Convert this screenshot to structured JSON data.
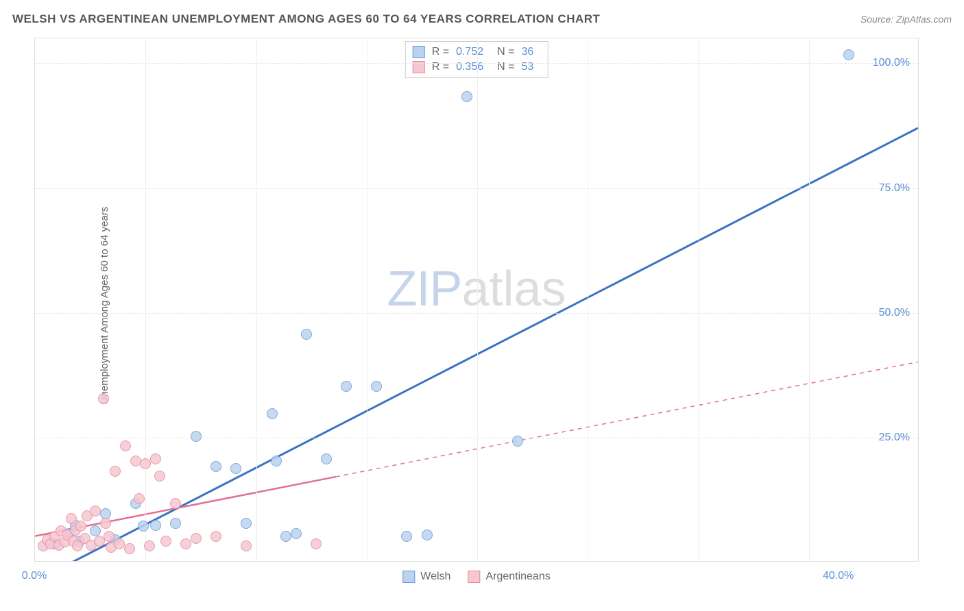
{
  "title": "WELSH VS ARGENTINEAN UNEMPLOYMENT AMONG AGES 60 TO 64 YEARS CORRELATION CHART",
  "source": "Source: ZipAtlas.com",
  "y_axis_label": "Unemployment Among Ages 60 to 64 years",
  "watermark_zip": "ZIP",
  "watermark_atlas": "atlas",
  "chart": {
    "type": "scatter",
    "xlim": [
      0,
      44
    ],
    "ylim": [
      0,
      105
    ],
    "x_ticks": [
      {
        "v": 0,
        "label": "0.0%"
      },
      {
        "v": 40,
        "label": "40.0%"
      }
    ],
    "y_ticks": [
      {
        "v": 25,
        "label": "25.0%"
      },
      {
        "v": 50,
        "label": "50.0%"
      },
      {
        "v": 75,
        "label": "75.0%"
      },
      {
        "v": 100,
        "label": "100.0%"
      }
    ],
    "background_color": "#ffffff",
    "grid_color": "#e5e5e5",
    "marker_radius": 8,
    "marker_stroke_width": 1.5,
    "series": [
      {
        "name": "Welsh",
        "fill": "#bcd3ef",
        "stroke": "#6a9bd8",
        "line_color": "#3b72c4",
        "line_width": 3,
        "r_label": "R = ",
        "r_value": "0.752",
        "n_label": "N = ",
        "n_value": "36",
        "trend": {
          "x1": 1.0,
          "y1": -2.0,
          "x2": 44.0,
          "y2": 87.0,
          "solid_end_x": 44.0
        },
        "points": [
          [
            1.0,
            3.5
          ],
          [
            1.7,
            5.5
          ],
          [
            2.0,
            7.2
          ],
          [
            2.2,
            4.0
          ],
          [
            3.0,
            6.0
          ],
          [
            3.5,
            9.5
          ],
          [
            4.0,
            4.2
          ],
          [
            5.0,
            11.5
          ],
          [
            5.4,
            7.0
          ],
          [
            6.0,
            7.2
          ],
          [
            7.0,
            7.5
          ],
          [
            8.0,
            25.0
          ],
          [
            9.0,
            19.0
          ],
          [
            10.0,
            18.5
          ],
          [
            10.5,
            7.5
          ],
          [
            11.8,
            29.5
          ],
          [
            12.0,
            20.0
          ],
          [
            12.5,
            5.0
          ],
          [
            13.0,
            5.5
          ],
          [
            13.5,
            45.5
          ],
          [
            14.5,
            20.5
          ],
          [
            15.5,
            35.0
          ],
          [
            17.0,
            35.0
          ],
          [
            18.5,
            5.0
          ],
          [
            19.5,
            5.2
          ],
          [
            21.5,
            93.0
          ],
          [
            24.0,
            24.0
          ],
          [
            40.5,
            101.5
          ]
        ]
      },
      {
        "name": "Argentineans",
        "fill": "#f6c7d0",
        "stroke": "#e68aa0",
        "line_color": "#e46f8f",
        "line_width": 2.5,
        "r_label": "R = ",
        "r_value": "0.356",
        "n_label": "N = ",
        "n_value": "53",
        "trend": {
          "x1": 0.0,
          "y1": 5.0,
          "x2": 44.0,
          "y2": 40.0,
          "solid_end_x": 15.0
        },
        "points": [
          [
            0.4,
            3.0
          ],
          [
            0.6,
            4.2
          ],
          [
            0.8,
            3.5
          ],
          [
            1.0,
            5.0
          ],
          [
            1.2,
            3.2
          ],
          [
            1.3,
            6.0
          ],
          [
            1.5,
            3.8
          ],
          [
            1.6,
            5.2
          ],
          [
            1.8,
            8.5
          ],
          [
            1.9,
            4.0
          ],
          [
            2.0,
            6.2
          ],
          [
            2.1,
            3.0
          ],
          [
            2.3,
            7.0
          ],
          [
            2.5,
            4.5
          ],
          [
            2.6,
            9.0
          ],
          [
            2.8,
            3.2
          ],
          [
            3.0,
            10.0
          ],
          [
            3.2,
            4.0
          ],
          [
            3.4,
            32.5
          ],
          [
            3.5,
            7.5
          ],
          [
            3.7,
            5.0
          ],
          [
            3.8,
            2.8
          ],
          [
            4.0,
            18.0
          ],
          [
            4.2,
            3.5
          ],
          [
            4.5,
            23.0
          ],
          [
            4.7,
            2.5
          ],
          [
            5.0,
            20.0
          ],
          [
            5.2,
            12.5
          ],
          [
            5.5,
            19.5
          ],
          [
            5.7,
            3.0
          ],
          [
            6.0,
            20.5
          ],
          [
            6.2,
            17.0
          ],
          [
            6.5,
            4.0
          ],
          [
            7.0,
            11.5
          ],
          [
            7.5,
            3.5
          ],
          [
            8.0,
            4.5
          ],
          [
            9.0,
            5.0
          ],
          [
            10.5,
            3.0
          ],
          [
            14.0,
            3.5
          ]
        ]
      }
    ],
    "legend_labels": {
      "welsh": "Welsh",
      "argentineans": "Argentineans"
    }
  }
}
